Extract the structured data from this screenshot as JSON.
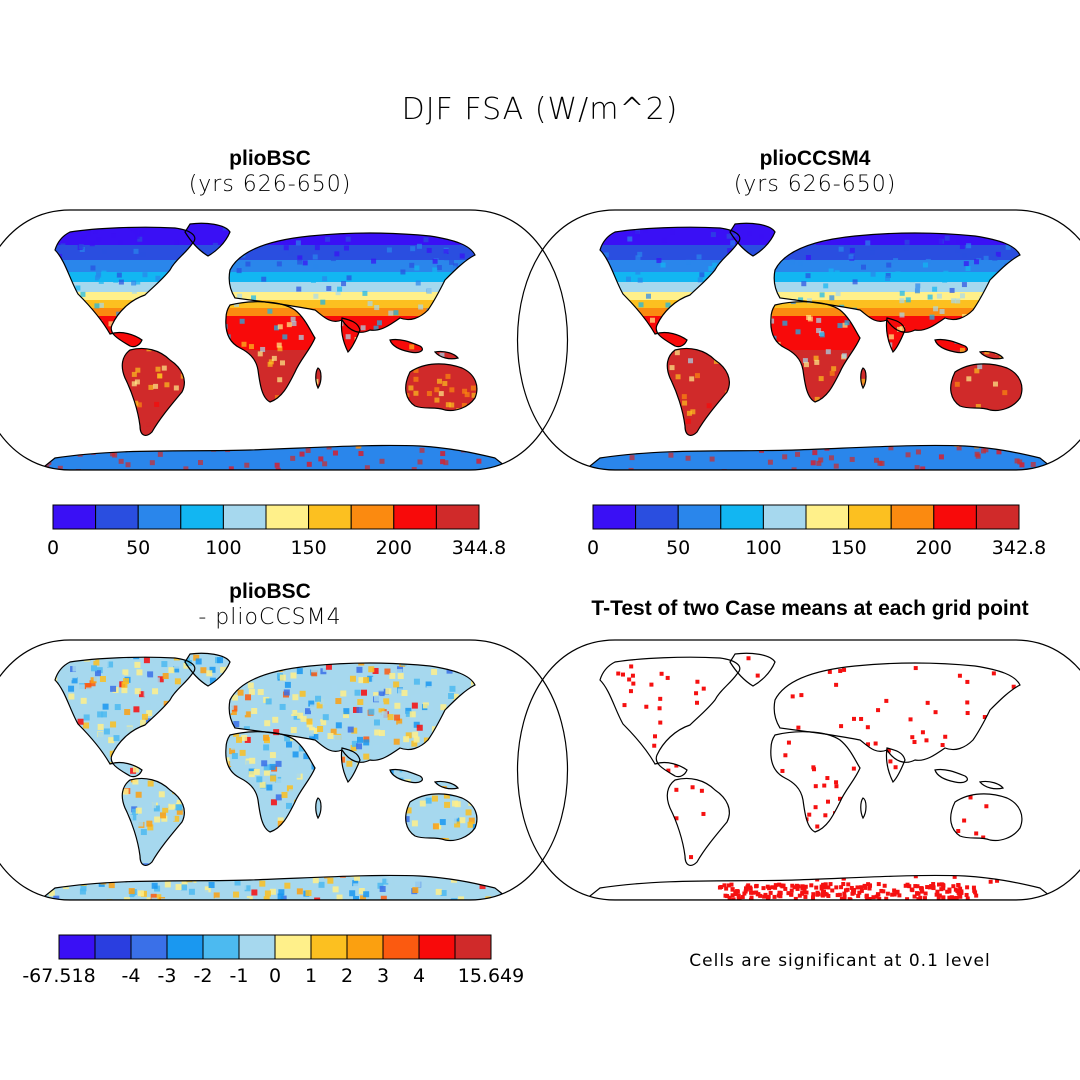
{
  "title": "DJF FSA (W/m^2)",
  "panels": [
    {
      "title": "plioBSC",
      "subtitle": "(yrs 626-650)",
      "type": "field"
    },
    {
      "title": "plioCCSM4",
      "subtitle": "(yrs 626-650)",
      "type": "field"
    },
    {
      "title": "plioBSC",
      "subtitle": "- plioCCSM4",
      "type": "difference"
    },
    {
      "title": "T-Test of two Case means at each grid point",
      "subtitle": "",
      "type": "significance"
    }
  ],
  "colorbars": [
    {
      "labels": [
        "0",
        "50",
        "100",
        "150",
        "200",
        "344.8"
      ],
      "colors": [
        "#3a10f5",
        "#2a4ee0",
        "#2a86eb",
        "#12b6f2",
        "#a6d8ee",
        "#fff08a",
        "#fcc020",
        "#fb8a10",
        "#f80a0a",
        "#d02a2a"
      ]
    },
    {
      "labels": [
        "0",
        "50",
        "100",
        "150",
        "200",
        "342.8"
      ],
      "colors": [
        "#3a10f5",
        "#2a4ee0",
        "#2a86eb",
        "#12b6f2",
        "#a6d8ee",
        "#fff08a",
        "#fcc020",
        "#fb8a10",
        "#f80a0a",
        "#d02a2a"
      ]
    },
    {
      "labels": [
        "-67.518",
        "-4",
        "-3",
        "-2",
        "-1",
        "0",
        "1",
        "2",
        "3",
        "4",
        "15.649"
      ],
      "colors": [
        "#3a10f5",
        "#2a3ee0",
        "#3a70e8",
        "#1a98f0",
        "#4cbaf0",
        "#a6d8ee",
        "#fff08a",
        "#fcc020",
        "#fba010",
        "#fb5a10",
        "#f80a0a",
        "#d02a2a"
      ]
    }
  ],
  "significance_note": "Cells are significant at 0.1 level",
  "significance_color": "#f51010"
}
